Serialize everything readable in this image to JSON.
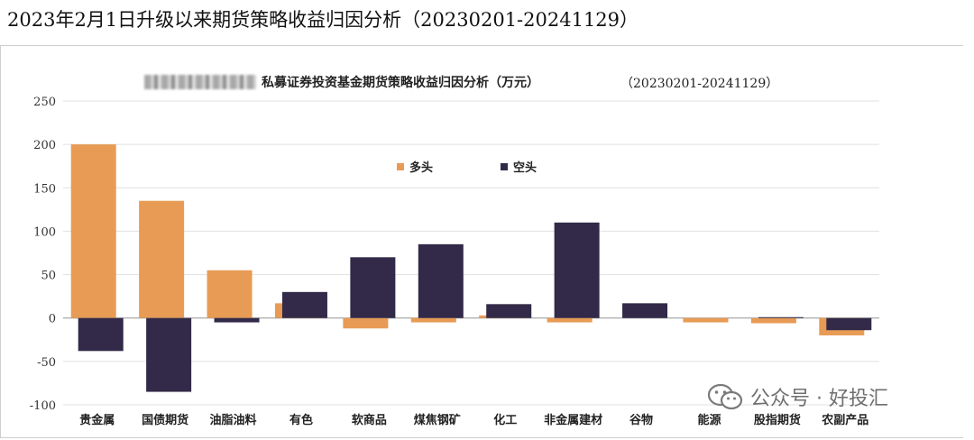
{
  "page": {
    "title": "2023年2月1日升级以来期货策略收益归因分析（20230201-20241129）",
    "watermark_text": "公众号 · 好投汇",
    "watermark_icon": "wechat-icon"
  },
  "chart_data": {
    "type": "bar",
    "title": "私募证券投资基金期货策略收益归因分析（万元）",
    "subtitle": "（20230201-20241129）",
    "categories": [
      "贵金属",
      "国债期货",
      "油脂油料",
      "有色",
      "软商品",
      "煤焦钢矿",
      "化工",
      "非金属建材",
      "谷物",
      "能源",
      "股指期货",
      "农副产品"
    ],
    "series": [
      {
        "name": "多头",
        "color": "#E89B55",
        "values": [
          200,
          135,
          55,
          17,
          -12,
          -5,
          3,
          -5,
          0,
          -5,
          -6,
          -20
        ]
      },
      {
        "name": "空头",
        "color": "#322A48",
        "values": [
          -38,
          -85,
          -5,
          30,
          70,
          85,
          16,
          110,
          17,
          0,
          1,
          -14
        ]
      }
    ],
    "ylim": [
      -100,
      250
    ],
    "yticks": [
      -100,
      -50,
      0,
      50,
      100,
      150,
      200,
      250
    ],
    "grid": true,
    "legend_position": "upper-center"
  }
}
